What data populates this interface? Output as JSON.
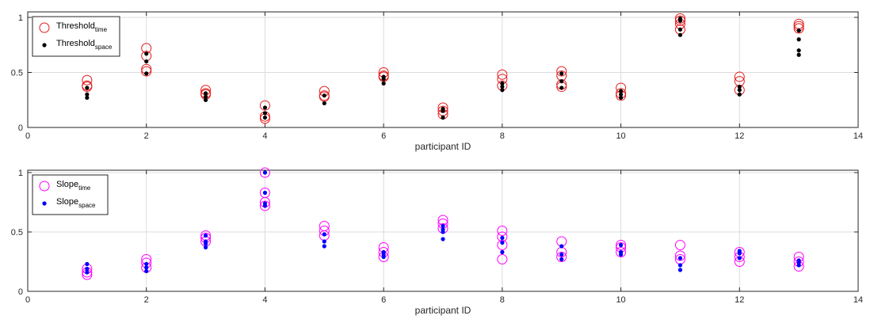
{
  "chart_data": [
    {
      "type": "scatter",
      "xlabel": "participant ID",
      "ylabel": "",
      "xlim": [
        0,
        14
      ],
      "ylim": [
        0,
        1.05
      ],
      "xticks": [
        0,
        2,
        4,
        6,
        8,
        10,
        12,
        14
      ],
      "xtick_labels": [
        "0",
        "2",
        "4",
        "6",
        "8",
        "10",
        "12",
        "14"
      ],
      "yticks": [
        0,
        0.5,
        1
      ],
      "ytick_labels": [
        "0",
        "0.5",
        "1"
      ],
      "grid": true,
      "legend_position": "top-left",
      "series": [
        {
          "name": "Threshold",
          "name_subscript": "time",
          "marker": "open-circle",
          "color": "#e41a1c",
          "x": [
            1,
            1,
            1,
            2,
            2,
            2,
            2,
            3,
            3,
            3,
            4,
            4,
            4,
            5,
            5,
            5,
            6,
            6,
            6,
            7,
            7,
            7,
            8,
            8,
            8,
            9,
            9,
            9,
            9,
            10,
            10,
            10,
            11,
            11,
            11,
            11,
            12,
            12,
            12,
            13,
            13,
            13
          ],
          "y": [
            0.43,
            0.38,
            0.37,
            0.72,
            0.65,
            0.53,
            0.51,
            0.34,
            0.31,
            0.3,
            0.2,
            0.1,
            0.08,
            0.33,
            0.29,
            0.28,
            0.5,
            0.47,
            0.46,
            0.18,
            0.15,
            0.12,
            0.48,
            0.44,
            0.38,
            0.51,
            0.47,
            0.39,
            0.37,
            0.36,
            0.31,
            0.29,
            0.99,
            0.97,
            0.94,
            0.89,
            0.46,
            0.42,
            0.34,
            0.94,
            0.92,
            0.9
          ]
        },
        {
          "name": "Threshold",
          "name_subscript": "space",
          "marker": "filled-dot",
          "color": "#000000",
          "x": [
            1,
            1,
            1,
            2,
            2,
            2,
            3,
            3,
            3,
            4,
            4,
            4,
            5,
            5,
            6,
            6,
            6,
            7,
            7,
            7,
            8,
            8,
            8,
            9,
            9,
            9,
            10,
            10,
            10,
            11,
            11,
            11,
            11,
            12,
            12,
            12,
            13,
            13,
            13,
            13
          ],
          "y": [
            0.36,
            0.3,
            0.27,
            0.67,
            0.6,
            0.49,
            0.31,
            0.28,
            0.25,
            0.18,
            0.13,
            0.09,
            0.29,
            0.22,
            0.46,
            0.44,
            0.4,
            0.17,
            0.15,
            0.09,
            0.4,
            0.37,
            0.34,
            0.49,
            0.42,
            0.36,
            0.33,
            0.3,
            0.27,
            0.99,
            0.97,
            0.89,
            0.84,
            0.37,
            0.34,
            0.3,
            0.88,
            0.8,
            0.7,
            0.66
          ]
        }
      ]
    },
    {
      "type": "scatter",
      "xlabel": "participant ID",
      "ylabel": "",
      "xlim": [
        0,
        14
      ],
      "ylim": [
        0,
        1.02
      ],
      "xticks": [
        0,
        2,
        4,
        6,
        8,
        10,
        12,
        14
      ],
      "xtick_labels": [
        "0",
        "2",
        "4",
        "6",
        "8",
        "10",
        "12",
        "14"
      ],
      "yticks": [
        0,
        0.5,
        1
      ],
      "ytick_labels": [
        "0",
        "0.5",
        "1"
      ],
      "grid": true,
      "legend_position": "top-left",
      "series": [
        {
          "name": "Slope",
          "name_subscript": "time",
          "marker": "open-circle",
          "color": "#ff00ff",
          "x": [
            1,
            1,
            1,
            2,
            2,
            2,
            3,
            3,
            3,
            4,
            4,
            4,
            4,
            5,
            5,
            5,
            6,
            6,
            6,
            7,
            7,
            7,
            8,
            8,
            8,
            8,
            9,
            9,
            9,
            10,
            10,
            10,
            11,
            11,
            11,
            12,
            12,
            12,
            13,
            13,
            13
          ],
          "y": [
            0.19,
            0.16,
            0.14,
            0.27,
            0.24,
            0.2,
            0.47,
            0.45,
            0.42,
            1.0,
            0.83,
            0.75,
            0.72,
            0.55,
            0.51,
            0.47,
            0.37,
            0.33,
            0.29,
            0.6,
            0.57,
            0.53,
            0.51,
            0.46,
            0.39,
            0.27,
            0.42,
            0.33,
            0.29,
            0.39,
            0.37,
            0.33,
            0.39,
            0.3,
            0.27,
            0.33,
            0.29,
            0.25,
            0.29,
            0.25,
            0.21
          ]
        },
        {
          "name": "Slope",
          "name_subscript": "space",
          "marker": "filled-dot",
          "color": "#0000ff",
          "x": [
            1,
            1,
            1,
            2,
            2,
            2,
            3,
            3,
            3,
            3,
            4,
            4,
            4,
            4,
            5,
            5,
            5,
            6,
            6,
            6,
            7,
            7,
            7,
            7,
            8,
            8,
            8,
            9,
            9,
            9,
            10,
            10,
            10,
            11,
            11,
            11,
            12,
            12,
            12,
            13,
            13,
            13
          ],
          "y": [
            0.23,
            0.19,
            0.16,
            0.23,
            0.2,
            0.17,
            0.47,
            0.42,
            0.4,
            0.37,
            1.0,
            0.83,
            0.74,
            0.72,
            0.48,
            0.42,
            0.38,
            0.33,
            0.31,
            0.29,
            0.55,
            0.52,
            0.5,
            0.44,
            0.45,
            0.41,
            0.33,
            0.38,
            0.31,
            0.27,
            0.39,
            0.33,
            0.31,
            0.28,
            0.22,
            0.18,
            0.34,
            0.32,
            0.28,
            0.26,
            0.24,
            0.22
          ]
        }
      ]
    }
  ]
}
